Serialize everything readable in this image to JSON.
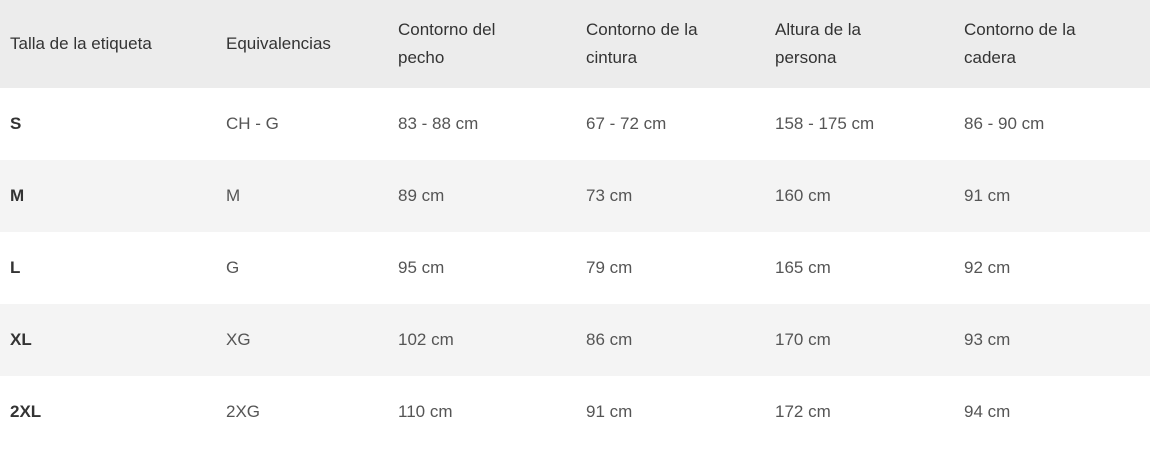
{
  "headers": [
    "Talla de la etiqueta",
    "Equivalencias",
    "Contorno del pecho",
    "Contorno de la cintura",
    "Altura de la persona",
    "Contorno de la cadera"
  ],
  "rows": [
    [
      "S",
      "CH - G",
      "83 - 88 cm",
      "67 - 72 cm",
      "158 - 175 cm",
      "86 - 90 cm"
    ],
    [
      "M",
      "M",
      "89 cm",
      "73 cm",
      "160 cm",
      "91 cm"
    ],
    [
      "L",
      "G",
      "95 cm",
      "79 cm",
      "165 cm",
      "92 cm"
    ],
    [
      "XL",
      "XG",
      "102 cm",
      "86 cm",
      "170 cm",
      "93 cm"
    ],
    [
      "2XL",
      "2XG",
      "110 cm",
      "91 cm",
      "172 cm",
      "94 cm"
    ]
  ],
  "colors": {
    "header_bg": "#ececec",
    "stripe_bg": "#f4f4f4",
    "text": "#333333"
  }
}
